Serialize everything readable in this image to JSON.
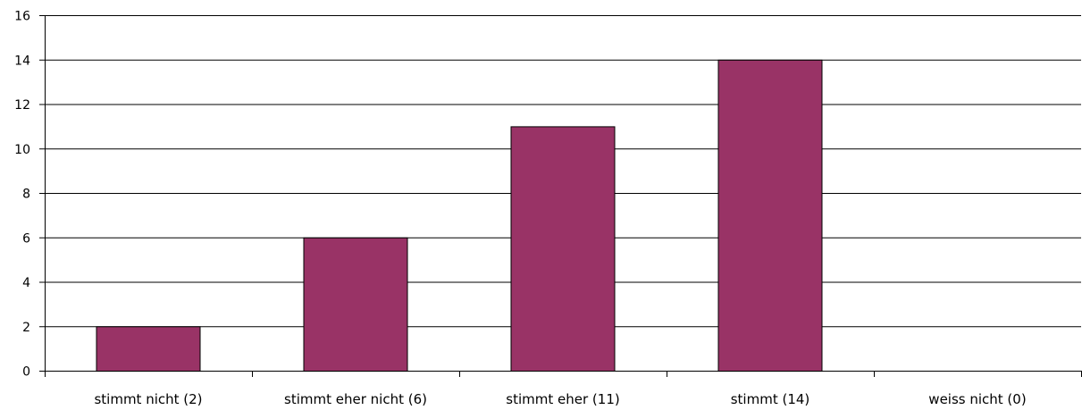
{
  "chart_data": {
    "type": "bar",
    "categories": [
      "stimmt nicht (2)",
      "stimmt eher nicht (6)",
      "stimmt eher (11)",
      "stimmt  (14)",
      "weiss nicht (0)"
    ],
    "values": [
      2,
      6,
      11,
      14,
      0
    ],
    "title": "",
    "xlabel": "",
    "ylabel": "",
    "ylim": [
      0,
      16
    ],
    "yticks": [
      0,
      2,
      4,
      6,
      8,
      10,
      12,
      14,
      16
    ],
    "grid": true,
    "legend": "none",
    "bar_color": "#993366"
  }
}
